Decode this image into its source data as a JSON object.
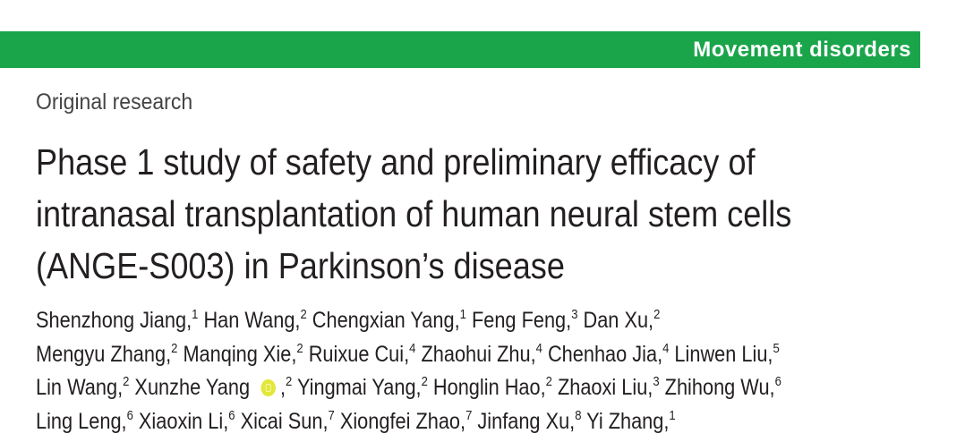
{
  "header": {
    "section": "Movement disorders",
    "article_type": "Original research"
  },
  "title": {
    "lines": [
      "Phase 1 study of safety and preliminary efficacy of",
      "intranasal transplantation of human neural stem cells",
      "(ANGE-S003) in Parkinson’s disease"
    ]
  },
  "authors": {
    "lines": [
      [
        {
          "name": "Shenzhong Jiang,",
          "affil": "1"
        },
        {
          "name": "Han Wang,",
          "affil": "2"
        },
        {
          "name": "Chengxian Yang,",
          "affil": "1"
        },
        {
          "name": "Feng Feng,",
          "affil": "3"
        },
        {
          "name": "Dan Xu,",
          "affil": "2"
        }
      ],
      [
        {
          "name": "Mengyu Zhang,",
          "affil": "2"
        },
        {
          "name": "Manqing Xie,",
          "affil": "2"
        },
        {
          "name": "Ruixue Cui,",
          "affil": "4"
        },
        {
          "name": "Zhaohui Zhu,",
          "affil": "4"
        },
        {
          "name": "Chenhao Jia,",
          "affil": "4"
        },
        {
          "name": "Linwen Liu,",
          "affil": "5"
        }
      ],
      [
        {
          "name": "Lin Wang,",
          "affil": "2"
        },
        {
          "name": "Xunzhe Yang",
          "orcid": true,
          "after": ",",
          "affil": "2"
        },
        {
          "name": "Yingmai Yang,",
          "affil": "2"
        },
        {
          "name": "Honglin Hao,",
          "affil": "2"
        },
        {
          "name": "Zhaoxi Liu,",
          "affil": "3"
        },
        {
          "name": "Zhihong Wu,",
          "affil": "6"
        }
      ],
      [
        {
          "name": "Ling Leng,",
          "affil": "6"
        },
        {
          "name": "Xiaoxin Li,",
          "affil": "6"
        },
        {
          "name": "Xicai Sun,",
          "affil": "7"
        },
        {
          "name": "Xiongfei Zhao,",
          "affil": "7"
        },
        {
          "name": "Jinfang Xu,",
          "affil": "8"
        },
        {
          "name": "Yi Zhang,",
          "affil": "1"
        }
      ]
    ]
  }
}
